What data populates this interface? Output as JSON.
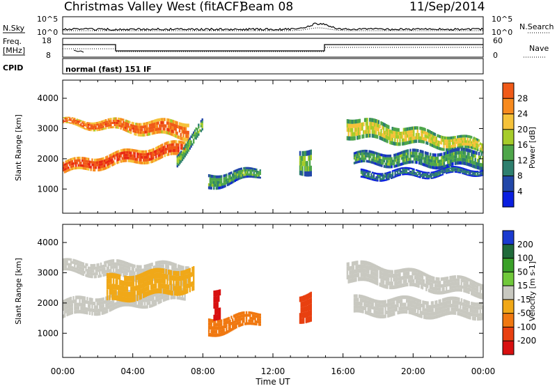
{
  "header": {
    "title": "Christmas Valley West (fitACF)",
    "beam": "Beam 08",
    "date": "11/Sep/2014"
  },
  "sky_panel": {
    "left_label": "N.Sky",
    "left_ticks": [
      "10^5",
      "10^0"
    ],
    "right_ticks": [
      "10^5",
      "10^0"
    ],
    "right_label": "N.Search"
  },
  "freq_panel": {
    "left_label_1": "Freq.",
    "left_label_2": "[MHz]",
    "left_ticks": [
      "18",
      "8"
    ],
    "right_ticks": [
      "60",
      "0"
    ],
    "right_label": "Nave"
  },
  "cpid_panel": {
    "label": "CPID",
    "mode_text": "normal (fast) 151 IF"
  },
  "colors": {
    "power_scale": [
      "#0a1fe0",
      "#2247a8",
      "#2e7f6e",
      "#4ea64a",
      "#a6cc2a",
      "#f5c23a",
      "#f78a1e",
      "#f05a18",
      "#e82a14"
    ],
    "velocity_scale": [
      "#1a3ad0",
      "#1f6a3a",
      "#3aa028",
      "#70c83a",
      "#c8c8c0",
      "#f0a818",
      "#f07810",
      "#e84010",
      "#d81010"
    ]
  },
  "chart_data": [
    {
      "type": "heatmap",
      "quantity": "Power",
      "ylabel": "Slant Range [km]",
      "y_ticks": [
        1000,
        2000,
        3000,
        4000
      ],
      "ylim": [
        200,
        4600
      ],
      "xlim_hours": [
        0,
        24
      ],
      "colorbar_label": "Power [dB]",
      "colorbar_ticks": [
        4,
        8,
        12,
        16,
        20,
        24,
        28
      ],
      "colorbar_range": [
        0,
        32
      ],
      "regions": [
        {
          "x": [
            0.0,
            7.0
          ],
          "y_start": [
            1500,
            2100
          ],
          "y_end": [
            1900,
            2600
          ],
          "value": 28
        },
        {
          "x": [
            0.0,
            7.2
          ],
          "y_start": [
            3100,
            2650
          ],
          "y_end": [
            3300,
            3250
          ],
          "value": 26
        },
        {
          "x": [
            6.5,
            8.0
          ],
          "y_start": [
            1800,
            2900
          ],
          "y_end": [
            2200,
            3300
          ],
          "value": 14
        },
        {
          "x": [
            8.3,
            11.3
          ],
          "y_start": [
            1000,
            1400
          ],
          "y_end": [
            1500,
            1700
          ],
          "value": 12
        },
        {
          "x": [
            13.5,
            14.2
          ],
          "y_start": [
            1500,
            1500
          ],
          "y_end": [
            2300,
            2400
          ],
          "value": 14
        },
        {
          "x": [
            16.2,
            24.0
          ],
          "y_start": [
            2700,
            2200
          ],
          "y_end": [
            3400,
            2600
          ],
          "value": 18
        },
        {
          "x": [
            16.6,
            24.0
          ],
          "y_start": [
            1800,
            1700
          ],
          "y_end": [
            2200,
            2300
          ],
          "value": 12
        },
        {
          "x": [
            17.0,
            24.0
          ],
          "y_start": [
            1300,
            1500
          ],
          "y_end": [
            1600,
            1700
          ],
          "value": 8
        }
      ]
    },
    {
      "type": "heatmap",
      "quantity": "Velocity",
      "ylabel": "Slant Range [km]",
      "xlabel": "Time UT",
      "x_tick_labels": [
        "00:00",
        "04:00",
        "08:00",
        "12:00",
        "16:00",
        "20:00",
        "00:00"
      ],
      "y_ticks": [
        1000,
        2000,
        3000,
        4000
      ],
      "ylim": [
        200,
        4600
      ],
      "xlim_hours": [
        0,
        24
      ],
      "colorbar_label": "Velocity [m s-1]",
      "colorbar_ticks": [
        200,
        100,
        50,
        15,
        -15,
        -50,
        -100,
        -200
      ],
      "regions": [
        {
          "x": [
            0.0,
            7.0
          ],
          "y_start": [
            1500,
            2100
          ],
          "y_end": [
            2100,
            2600
          ],
          "value": 0
        },
        {
          "x": [
            0.0,
            7.2
          ],
          "y_start": [
            3000,
            2600
          ],
          "y_end": [
            3400,
            3300
          ],
          "value": 0
        },
        {
          "x": [
            2.5,
            7.5
          ],
          "y_start": [
            2000,
            2400
          ],
          "y_end": [
            2900,
            3200
          ],
          "value": -40
        },
        {
          "x": [
            8.3,
            11.3
          ],
          "y_start": [
            900,
            1300
          ],
          "y_end": [
            1500,
            1700
          ],
          "value": -90
        },
        {
          "x": [
            8.6,
            9.0
          ],
          "y_start": [
            1500,
            1500
          ],
          "y_end": [
            2500,
            2500
          ],
          "value": -200
        },
        {
          "x": [
            13.5,
            14.2
          ],
          "y_start": [
            1400,
            1400
          ],
          "y_end": [
            2300,
            2400
          ],
          "value": -120
        },
        {
          "x": [
            16.2,
            24.0
          ],
          "y_start": [
            2700,
            2200
          ],
          "y_end": [
            3400,
            2700
          ],
          "value": 0
        },
        {
          "x": [
            16.6,
            24.0
          ],
          "y_start": [
            1600,
            1500
          ],
          "y_end": [
            2200,
            2100
          ],
          "value": 0
        }
      ]
    }
  ]
}
